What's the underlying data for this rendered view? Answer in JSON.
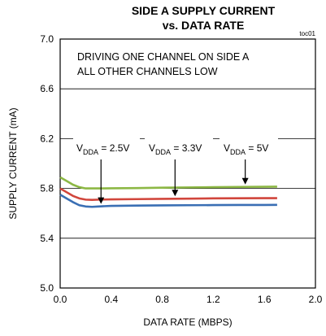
{
  "chart_data": {
    "type": "line",
    "title_line1": "SIDE A SUPPLY CURRENT",
    "title_line2": "vs. DATA RATE",
    "figure_code": "toc01",
    "xlabel": "DATA RATE (MBPS)",
    "ylabel": "SUPPLY CURRENT (mA)",
    "xlim": [
      0.0,
      2.0
    ],
    "ylim": [
      5.0,
      7.0
    ],
    "x_ticks": [
      "0.0",
      "0.4",
      "0.8",
      "1.2",
      "1.6",
      "2.0"
    ],
    "y_ticks": [
      "5.0",
      "5.4",
      "5.8",
      "6.2",
      "6.6",
      "7.0"
    ],
    "grid": true,
    "annotation_lines": [
      "DRIVING ONE CHANNEL ON SIDE A",
      "ALL OTHER CHANNELS LOW"
    ],
    "series": [
      {
        "label_main": "V",
        "label_sub": "DDA",
        "label_value": " = 2.5V",
        "color": "#3a6fb4",
        "x": [
          0.0,
          0.05,
          0.1,
          0.15,
          0.2,
          0.25,
          0.3,
          0.4,
          0.6,
          0.8,
          1.0,
          1.2,
          1.4,
          1.6,
          1.7
        ],
        "y": [
          5.75,
          5.72,
          5.69,
          5.665,
          5.655,
          5.652,
          5.655,
          5.66,
          5.662,
          5.664,
          5.665,
          5.666,
          5.667,
          5.667,
          5.668
        ],
        "arrow_at_x": 0.32
      },
      {
        "label_main": "V",
        "label_sub": "DDA",
        "label_value": " = 3.3V",
        "color": "#d1463c",
        "x": [
          0.0,
          0.05,
          0.1,
          0.15,
          0.2,
          0.25,
          0.3,
          0.4,
          0.6,
          0.8,
          1.0,
          1.2,
          1.4,
          1.6,
          1.7
        ],
        "y": [
          5.8,
          5.77,
          5.74,
          5.72,
          5.71,
          5.708,
          5.71,
          5.712,
          5.714,
          5.716,
          5.718,
          5.72,
          5.721,
          5.722,
          5.722
        ],
        "arrow_at_x": 0.9
      },
      {
        "label_main": "V",
        "label_sub": "DDA",
        "label_value": " = 5V",
        "color": "#8db845",
        "x": [
          0.0,
          0.05,
          0.1,
          0.15,
          0.2,
          0.25,
          0.3,
          0.4,
          0.6,
          0.8,
          1.0,
          1.2,
          1.4,
          1.6,
          1.7
        ],
        "y": [
          5.89,
          5.86,
          5.83,
          5.81,
          5.8,
          5.8,
          5.8,
          5.801,
          5.803,
          5.806,
          5.808,
          5.81,
          5.812,
          5.813,
          5.814
        ],
        "arrow_at_x": 1.45
      }
    ]
  }
}
